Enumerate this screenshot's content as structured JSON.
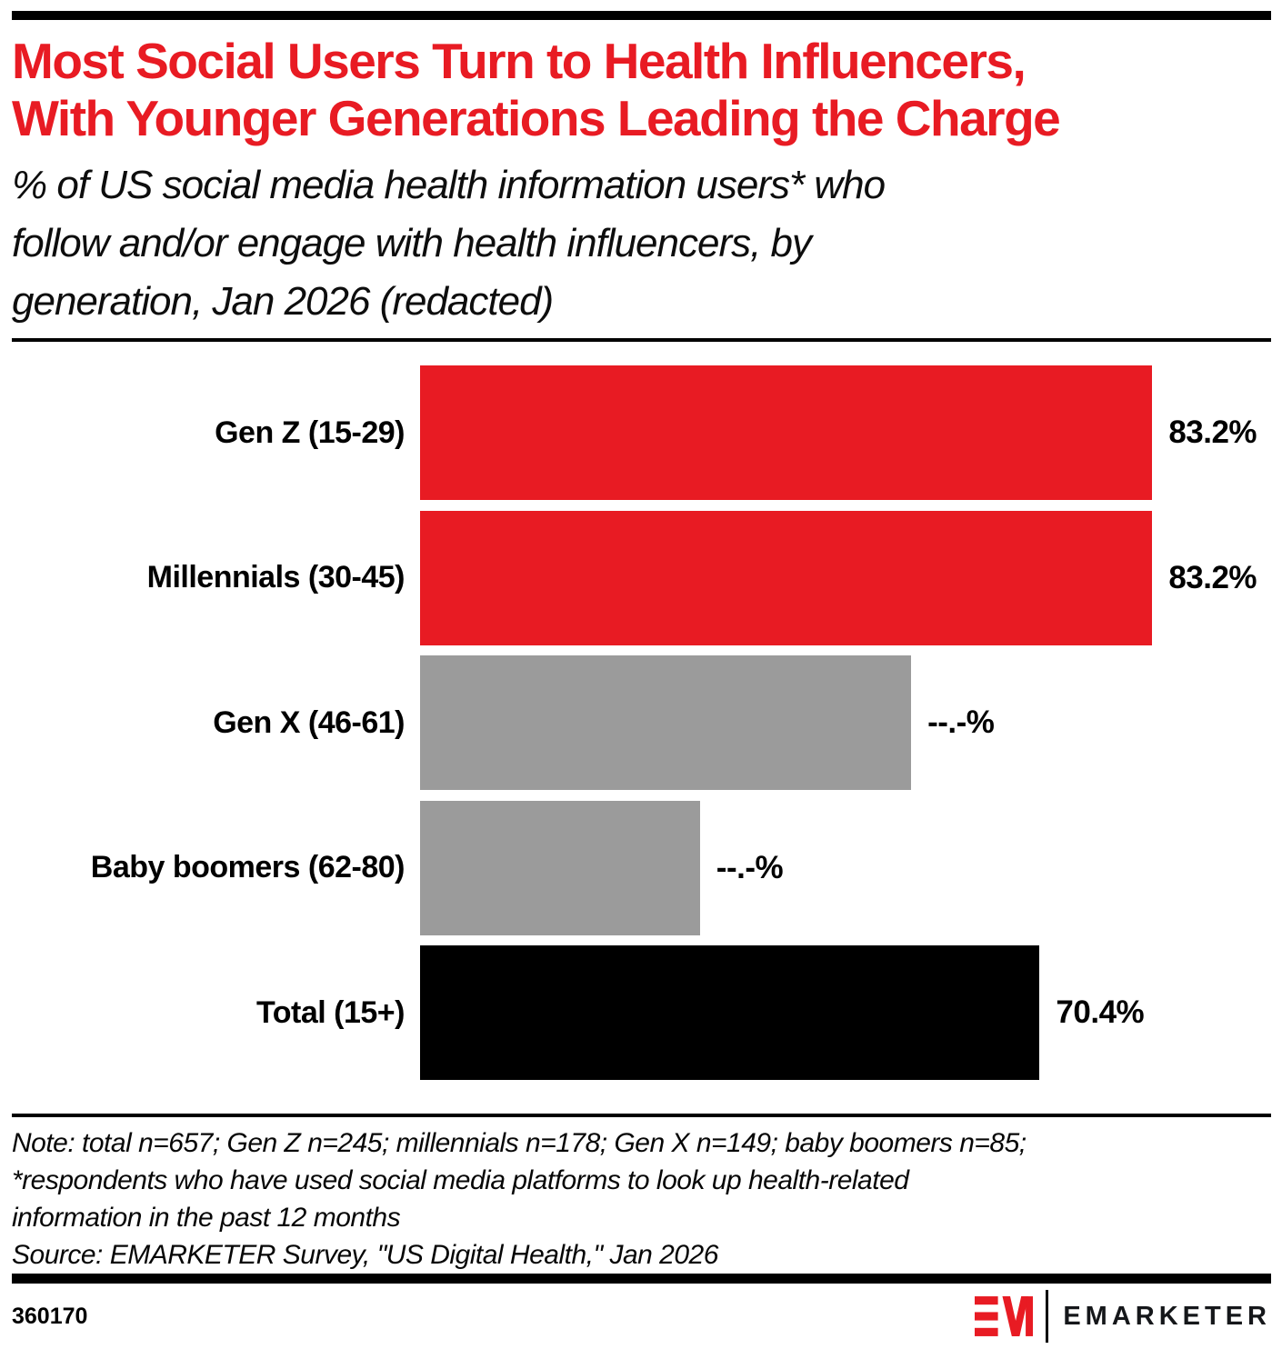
{
  "header": {
    "title_line1": "Most Social Users Turn to Health Influencers,",
    "title_line2": "With Younger Generations Leading the Charge",
    "subtitle_lines": [
      "% of US social media health information users* who",
      "follow and/or engage with health influencers, by",
      "generation, Jan 2026 (redacted)"
    ]
  },
  "colors": {
    "red": "#E81B23",
    "gray": "#9B9B9B",
    "black": "#000000"
  },
  "chart_data": {
    "type": "bar",
    "orientation": "horizontal",
    "title": "Most Social Users Turn to Health Influencers, With Younger Generations Leading the Charge",
    "subtitle": "% of US social media health information users* who follow and/or engage with health influencers, by generation, Jan 2026 (redacted)",
    "categories": [
      "Gen Z (15-29)",
      "Millennials (30-45)",
      "Gen X (46-61)",
      "Baby boomers (62-80)",
      "Total (15+)"
    ],
    "values": [
      83.2,
      83.2,
      null,
      null,
      70.4
    ],
    "value_labels": [
      "83.2%",
      "83.2%",
      "--.-%",
      "--.-%",
      "70.4%"
    ],
    "bar_lengths_pct": [
      83.2,
      83.2,
      55.8,
      31.8,
      70.4
    ],
    "bar_colors": [
      "#E81B23",
      "#E81B23",
      "#9B9B9B",
      "#9B9B9B",
      "#000000"
    ],
    "xlim": [
      0,
      96.7
    ],
    "xlabel": "",
    "ylabel": "",
    "grid": false,
    "legend": false,
    "redaction_note": "Gen X and Baby boomers values are displayed redacted as --.-%; bar_lengths_pct holds the visual bar lengths estimated from pixel widths"
  },
  "footnote": {
    "note_lines": [
      "Note: total n=657; Gen Z n=245; millennials n=178; Gen X n=149; baby boomers n=85;",
      "*respondents who have used social media platforms to look up health-related",
      "information in the past 12 months"
    ],
    "source": "Source: EMARKETER Survey, \"US Digital Health,\" Jan 2026"
  },
  "footer": {
    "chart_id": "360170",
    "brand": "EMARKETER"
  }
}
